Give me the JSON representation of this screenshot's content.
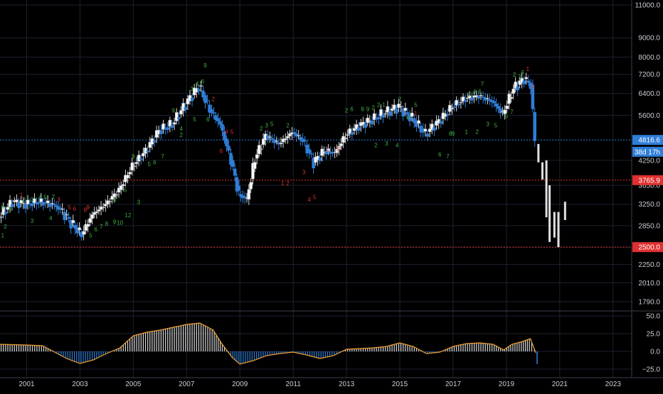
{
  "chart_data": {
    "type": "candlestick",
    "scale": "log",
    "grid": true,
    "price_axis": {
      "ticks": [
        "11000.0",
        "9000.0",
        "8000.0",
        "7200.0",
        "6400.0",
        "5600.0",
        "4250.0",
        "3650.0",
        "3250.0",
        "2850.0",
        "2500.0",
        "2250.0",
        "2010.0",
        "1790.0"
      ],
      "labels": [
        {
          "text": "4816.6",
          "value": 4816.6,
          "color": "#2f7ed8"
        },
        {
          "text": "38d 17h",
          "value": 4480,
          "color": "#2f7ed8"
        },
        {
          "text": "3765.9",
          "value": 3765.9,
          "color": "#e03030"
        },
        {
          "text": "2500.0",
          "value": 2500.0,
          "color": "#e03030"
        }
      ]
    },
    "horizontal_lines": [
      {
        "value": 4816.6,
        "color": "#2f7ed8"
      },
      {
        "value": 3765.9,
        "color": "#e03030"
      },
      {
        "value": 2500.0,
        "color": "#e03030"
      }
    ],
    "x_axis": {
      "labels": [
        "2001",
        "2003",
        "2005",
        "2007",
        "2009",
        "2011",
        "2013",
        "2015",
        "2017",
        "2019",
        "2021",
        "2023"
      ],
      "years": [
        2001,
        2003,
        2005,
        2007,
        2009,
        2011,
        2013,
        2015,
        2017,
        2019,
        2021,
        2023
      ]
    },
    "series_close": [
      {
        "t": 2000.0,
        "v": 3000
      },
      {
        "t": 2000.5,
        "v": 3300
      },
      {
        "t": 2001.0,
        "v": 3250
      },
      {
        "t": 2001.5,
        "v": 3300
      },
      {
        "t": 2002.0,
        "v": 3250
      },
      {
        "t": 2002.3,
        "v": 3150
      },
      {
        "t": 2002.7,
        "v": 2900
      },
      {
        "t": 2003.1,
        "v": 2700
      },
      {
        "t": 2003.5,
        "v": 3050
      },
      {
        "t": 2004.0,
        "v": 3250
      },
      {
        "t": 2004.5,
        "v": 3550
      },
      {
        "t": 2005.0,
        "v": 4100
      },
      {
        "t": 2005.5,
        "v": 4500
      },
      {
        "t": 2006.0,
        "v": 5100
      },
      {
        "t": 2006.5,
        "v": 5300
      },
      {
        "t": 2007.0,
        "v": 6000
      },
      {
        "t": 2007.5,
        "v": 6700
      },
      {
        "t": 2007.9,
        "v": 5800
      },
      {
        "t": 2008.3,
        "v": 5300
      },
      {
        "t": 2008.7,
        "v": 4250
      },
      {
        "t": 2009.0,
        "v": 3450
      },
      {
        "t": 2009.3,
        "v": 3350
      },
      {
        "t": 2009.6,
        "v": 4300
      },
      {
        "t": 2010.0,
        "v": 4950
      },
      {
        "t": 2010.5,
        "v": 4700
      },
      {
        "t": 2011.0,
        "v": 5050
      },
      {
        "t": 2011.4,
        "v": 4800
      },
      {
        "t": 2011.8,
        "v": 4200
      },
      {
        "t": 2012.2,
        "v": 4500
      },
      {
        "t": 2012.6,
        "v": 4450
      },
      {
        "t": 2013.0,
        "v": 4950
      },
      {
        "t": 2013.5,
        "v": 5250
      },
      {
        "t": 2014.0,
        "v": 5450
      },
      {
        "t": 2014.5,
        "v": 5700
      },
      {
        "t": 2015.0,
        "v": 5900
      },
      {
        "t": 2015.5,
        "v": 5500
      },
      {
        "t": 2016.0,
        "v": 5000
      },
      {
        "t": 2016.5,
        "v": 5400
      },
      {
        "t": 2017.0,
        "v": 5900
      },
      {
        "t": 2017.5,
        "v": 6200
      },
      {
        "t": 2018.0,
        "v": 6300
      },
      {
        "t": 2018.5,
        "v": 6100
      },
      {
        "t": 2018.9,
        "v": 5650
      },
      {
        "t": 2019.3,
        "v": 6600
      },
      {
        "t": 2019.7,
        "v": 7000
      },
      {
        "t": 2019.95,
        "v": 6750
      },
      {
        "t": 2020.1,
        "v": 4816.6
      }
    ],
    "projection_bars": [
      {
        "t": 2020.2,
        "high": 4700,
        "low": 4200
      },
      {
        "t": 2020.35,
        "high": 4200,
        "low": 3780
      },
      {
        "t": 2020.5,
        "high": 4250,
        "low": 3000
      },
      {
        "t": 2020.62,
        "high": 3650,
        "low": 2580
      },
      {
        "t": 2020.8,
        "high": 3100,
        "low": 2650
      },
      {
        "t": 2020.95,
        "high": 3100,
        "low": 2500
      },
      {
        "t": 2021.2,
        "high": 3300,
        "low": 2950
      }
    ],
    "td_counts_green": [
      {
        "t": 2000.1,
        "v": 3150,
        "text": "9"
      },
      {
        "t": 2000.4,
        "v": 3120,
        "text": "9"
      },
      {
        "t": 2000.9,
        "v": 3300,
        "text": "2"
      },
      {
        "t": 2001.2,
        "v": 3300,
        "text": "3"
      },
      {
        "t": 2001.5,
        "v": 3350,
        "text": "4"
      },
      {
        "t": 2001.7,
        "v": 3350,
        "text": "5"
      },
      {
        "t": 2002.0,
        "v": 3360,
        "text": "2"
      },
      {
        "t": 2000.2,
        "v": 2800,
        "text": "2"
      },
      {
        "t": 2000.1,
        "v": 2650,
        "text": "1"
      },
      {
        "t": 2001.2,
        "v": 2900,
        "text": "3"
      },
      {
        "t": 2001.9,
        "v": 2950,
        "text": "4"
      },
      {
        "t": 2003.4,
        "v": 2650,
        "text": "5"
      },
      {
        "t": 2003.6,
        "v": 2750,
        "text": "6"
      },
      {
        "t": 2003.8,
        "v": 2800,
        "text": "7"
      },
      {
        "t": 2004.0,
        "v": 2850,
        "text": "8"
      },
      {
        "t": 2004.3,
        "v": 2880,
        "text": "9"
      },
      {
        "t": 2004.5,
        "v": 2870,
        "text": "10"
      },
      {
        "t": 2004.8,
        "v": 3000,
        "text": "12"
      },
      {
        "t": 2005.2,
        "v": 3250,
        "text": "3"
      },
      {
        "t": 2004.3,
        "v": 3300,
        "text": "3"
      },
      {
        "t": 2004.7,
        "v": 3500,
        "text": "5"
      },
      {
        "t": 2005.0,
        "v": 4300,
        "text": "9"
      },
      {
        "t": 2005.6,
        "v": 4100,
        "text": "5"
      },
      {
        "t": 2005.8,
        "v": 4150,
        "text": "6"
      },
      {
        "t": 2006.1,
        "v": 4300,
        "text": "7"
      },
      {
        "t": 2006.5,
        "v": 5700,
        "text": "9"
      },
      {
        "t": 2006.8,
        "v": 5100,
        "text": "4"
      },
      {
        "t": 2006.8,
        "v": 4900,
        "text": "2"
      },
      {
        "t": 2007.2,
        "v": 6500,
        "text": "3"
      },
      {
        "t": 2007.4,
        "v": 6700,
        "text": "4"
      },
      {
        "t": 2007.6,
        "v": 6800,
        "text": "6"
      },
      {
        "t": 2007.7,
        "v": 7500,
        "text": "9"
      },
      {
        "t": 2007.3,
        "v": 5400,
        "text": "5"
      },
      {
        "t": 2007.8,
        "v": 5400,
        "text": "6"
      },
      {
        "t": 2009.8,
        "v": 5100,
        "text": "2"
      },
      {
        "t": 2010.0,
        "v": 5200,
        "text": "3"
      },
      {
        "t": 2010.2,
        "v": 5250,
        "text": "5"
      },
      {
        "t": 2010.8,
        "v": 5200,
        "text": "2"
      },
      {
        "t": 2013.0,
        "v": 5700,
        "text": "2"
      },
      {
        "t": 2013.2,
        "v": 5750,
        "text": "6"
      },
      {
        "t": 2013.6,
        "v": 5750,
        "text": "8"
      },
      {
        "t": 2013.8,
        "v": 5750,
        "text": "9"
      },
      {
        "t": 2014.0,
        "v": 5800,
        "text": "2"
      },
      {
        "t": 2014.2,
        "v": 5900,
        "text": "2"
      },
      {
        "t": 2014.4,
        "v": 5900,
        "text": "1"
      },
      {
        "t": 2015.0,
        "v": 6100,
        "text": "2"
      },
      {
        "t": 2014.1,
        "v": 4600,
        "text": "2"
      },
      {
        "t": 2014.5,
        "v": 4650,
        "text": "3"
      },
      {
        "t": 2014.9,
        "v": 4600,
        "text": "4"
      },
      {
        "t": 2015.3,
        "v": 5450,
        "text": "6"
      },
      {
        "t": 2015.6,
        "v": 5900,
        "text": "5"
      },
      {
        "t": 2016.5,
        "v": 4350,
        "text": "6"
      },
      {
        "t": 2016.8,
        "v": 4300,
        "text": "7"
      },
      {
        "t": 2016.9,
        "v": 4950,
        "text": "8"
      },
      {
        "t": 2017.0,
        "v": 4950,
        "text": "9"
      },
      {
        "t": 2017.6,
        "v": 6300,
        "text": "2"
      },
      {
        "t": 2017.8,
        "v": 6400,
        "text": "4"
      },
      {
        "t": 2018.0,
        "v": 6400,
        "text": "6"
      },
      {
        "t": 2018.1,
        "v": 6700,
        "text": "7"
      },
      {
        "t": 2017.5,
        "v": 5000,
        "text": "1"
      },
      {
        "t": 2017.9,
        "v": 5000,
        "text": "2"
      },
      {
        "t": 2018.3,
        "v": 5250,
        "text": "3"
      },
      {
        "t": 2018.6,
        "v": 5200,
        "text": "5"
      },
      {
        "t": 2019.0,
        "v": 5500,
        "text": "5"
      },
      {
        "t": 2019.2,
        "v": 5650,
        "text": "7"
      },
      {
        "t": 2019.3,
        "v": 7100,
        "text": "2"
      },
      {
        "t": 2019.6,
        "v": 7200,
        "text": "4"
      },
      {
        "t": 2019.5,
        "v": 7000,
        "text": "3"
      }
    ],
    "td_counts_red": [
      {
        "t": 2000.8,
        "v": 3400,
        "text": "1"
      },
      {
        "t": 2002.2,
        "v": 3300,
        "text": "3"
      },
      {
        "t": 2002.6,
        "v": 3150,
        "text": "5"
      },
      {
        "t": 2002.8,
        "v": 3120,
        "text": "6"
      },
      {
        "t": 2003.2,
        "v": 3100,
        "text": "8"
      },
      {
        "t": 2003.3,
        "v": 3150,
        "text": "9"
      },
      {
        "t": 2008.0,
        "v": 6100,
        "text": "2"
      },
      {
        "t": 2008.5,
        "v": 5000,
        "text": "4"
      },
      {
        "t": 2008.7,
        "v": 5000,
        "text": "5"
      },
      {
        "t": 2008.3,
        "v": 4450,
        "text": "6"
      },
      {
        "t": 2010.6,
        "v": 3650,
        "text": "1"
      },
      {
        "t": 2010.8,
        "v": 3650,
        "text": "2"
      },
      {
        "t": 2011.4,
        "v": 3900,
        "text": "3"
      },
      {
        "t": 2011.6,
        "v": 3300,
        "text": "4"
      },
      {
        "t": 2011.8,
        "v": 3350,
        "text": "5"
      },
      {
        "t": 2012.3,
        "v": 4500,
        "text": "1"
      },
      {
        "t": 2012.7,
        "v": 4500,
        "text": "3"
      },
      {
        "t": 2015.6,
        "v": 5600,
        "text": "1"
      },
      {
        "t": 2019.8,
        "v": 7350,
        "text": "1"
      },
      {
        "t": 2020.0,
        "v": 6600,
        "text": "2"
      }
    ],
    "oscillator": {
      "ticks": [
        "50.0",
        "25.0",
        "0.0",
        "−25.0"
      ],
      "ylim": [
        -30,
        52
      ],
      "line": [
        {
          "t": 2000.0,
          "v": 10
        },
        {
          "t": 2001.0,
          "v": 9
        },
        {
          "t": 2001.6,
          "v": 8
        },
        {
          "t": 2002.0,
          "v": 0
        },
        {
          "t": 2002.5,
          "v": -10
        },
        {
          "t": 2003.0,
          "v": -17
        },
        {
          "t": 2003.5,
          "v": -12
        },
        {
          "t": 2004.0,
          "v": -3
        },
        {
          "t": 2004.5,
          "v": 5
        },
        {
          "t": 2005.0,
          "v": 22
        },
        {
          "t": 2005.5,
          "v": 27
        },
        {
          "t": 2006.0,
          "v": 30
        },
        {
          "t": 2006.5,
          "v": 34
        },
        {
          "t": 2007.0,
          "v": 38
        },
        {
          "t": 2007.5,
          "v": 40
        },
        {
          "t": 2008.0,
          "v": 30
        },
        {
          "t": 2008.3,
          "v": 12
        },
        {
          "t": 2008.7,
          "v": -8
        },
        {
          "t": 2009.0,
          "v": -18
        },
        {
          "t": 2009.5,
          "v": -13
        },
        {
          "t": 2010.0,
          "v": -6
        },
        {
          "t": 2010.5,
          "v": -3
        },
        {
          "t": 2011.0,
          "v": -1
        },
        {
          "t": 2011.5,
          "v": -5
        },
        {
          "t": 2012.0,
          "v": -10
        },
        {
          "t": 2012.5,
          "v": -6
        },
        {
          "t": 2013.0,
          "v": 3
        },
        {
          "t": 2013.5,
          "v": 4
        },
        {
          "t": 2014.0,
          "v": 5
        },
        {
          "t": 2014.5,
          "v": 7
        },
        {
          "t": 2015.0,
          "v": 12
        },
        {
          "t": 2015.5,
          "v": 7
        },
        {
          "t": 2016.0,
          "v": -3
        },
        {
          "t": 2016.5,
          "v": -1
        },
        {
          "t": 2017.0,
          "v": 7
        },
        {
          "t": 2017.5,
          "v": 11
        },
        {
          "t": 2018.0,
          "v": 12
        },
        {
          "t": 2018.5,
          "v": 10
        },
        {
          "t": 2018.9,
          "v": 2
        },
        {
          "t": 2019.2,
          "v": 10
        },
        {
          "t": 2019.6,
          "v": 14
        },
        {
          "t": 2019.9,
          "v": 18
        },
        {
          "t": 2020.1,
          "v": -2
        }
      ]
    }
  }
}
